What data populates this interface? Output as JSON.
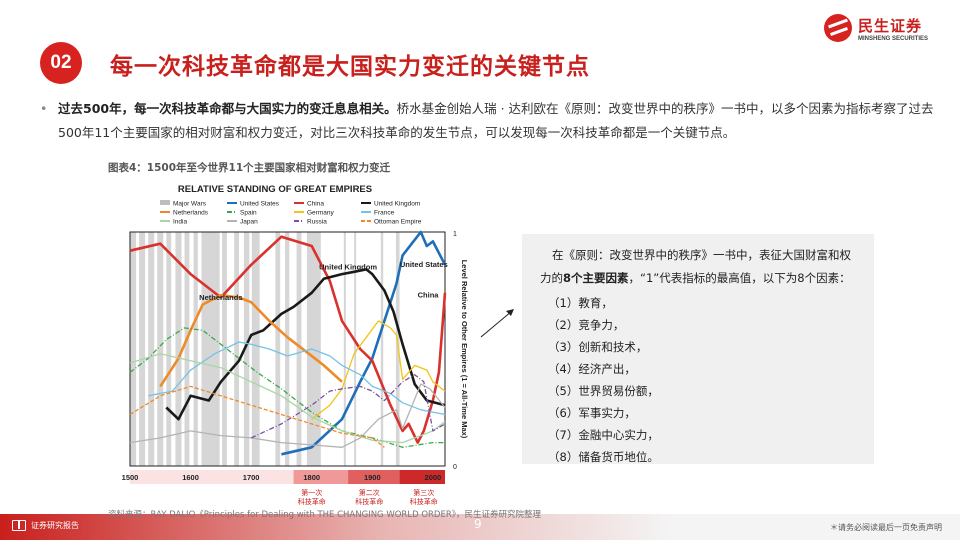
{
  "header": {
    "badge": "02",
    "title": "每一次科技革命都是大国实力变迁的关键节点",
    "brand_cn": "民生证券",
    "brand_en": "MINSHENG SECURITIES"
  },
  "intro": {
    "bullet": "•",
    "bold": "过去500年，每一次科技革命都与大国实力的变迁息息相关。",
    "rest": "桥水基金创始人瑞 · 达利欧在《原则：改变世界中的秩序》一书中，以多个因素为指标考察了过去500年11个主要国家的相对财富和权力变迁，对比三次科技革命的发生节点，可以发现每一次科技革命都是一个关键节点。"
  },
  "figure": {
    "caption": "图表4：1500年至今世界11个主要国家相对财富和权力变迁",
    "source": "资料来源：RAY DALIO《Principles for Dealing with THE CHANGING WORLD ORDER》，民生证券研究院整理"
  },
  "chart_data": {
    "type": "line",
    "title": "RELATIVE STANDING OF GREAT EMPIRES",
    "xlabel": "",
    "ylabel": "Level Relative to Other Empires (1 = All-Time Max)",
    "xlim": [
      1500,
      2020
    ],
    "ylim": [
      0,
      1
    ],
    "y_ticks": [
      "1",
      "0"
    ],
    "x_ticks": [
      "1500",
      "1600",
      "1700",
      "1800",
      "1900",
      "2000"
    ],
    "legend": [
      {
        "name": "Major Wars",
        "color": "#bdbdbd",
        "style": "band"
      },
      {
        "name": "United States",
        "color": "#1f6fb8",
        "style": "solid"
      },
      {
        "name": "China",
        "color": "#d9312b",
        "style": "solid"
      },
      {
        "name": "United Kingdom",
        "color": "#1a1a1a",
        "style": "solid"
      },
      {
        "name": "Netherlands",
        "color": "#ef8a2a",
        "style": "solid"
      },
      {
        "name": "Spain",
        "color": "#3aa84a",
        "style": "dashdot"
      },
      {
        "name": "Germany",
        "color": "#f2c419",
        "style": "solid"
      },
      {
        "name": "France",
        "color": "#76c2e6",
        "style": "solid"
      },
      {
        "name": "India",
        "color": "#a9d6a4",
        "style": "solid"
      },
      {
        "name": "Japan",
        "color": "#b3b3b3",
        "style": "solid"
      },
      {
        "name": "Russia",
        "color": "#7d4ea6",
        "style": "dashdot"
      },
      {
        "name": "Ottoman Empire",
        "color": "#ef8a2a",
        "style": "dashed"
      }
    ],
    "annotations": [
      {
        "text": "United Kingdom",
        "x": 1860,
        "y": 0.84
      },
      {
        "text": "United States",
        "x": 1985,
        "y": 0.85
      },
      {
        "text": "China",
        "x": 1992,
        "y": 0.72
      },
      {
        "text": "Netherlands",
        "x": 1650,
        "y": 0.71
      }
    ],
    "war_bands": [
      [
        1500,
        1510
      ],
      [
        1515,
        1525
      ],
      [
        1530,
        1540
      ],
      [
        1545,
        1555
      ],
      [
        1560,
        1568
      ],
      [
        1575,
        1585
      ],
      [
        1590,
        1598
      ],
      [
        1605,
        1612
      ],
      [
        1618,
        1648
      ],
      [
        1652,
        1660
      ],
      [
        1672,
        1680
      ],
      [
        1688,
        1697
      ],
      [
        1701,
        1714
      ],
      [
        1740,
        1748
      ],
      [
        1756,
        1763
      ],
      [
        1775,
        1783
      ],
      [
        1792,
        1815
      ],
      [
        1853,
        1856
      ],
      [
        1870,
        1871
      ],
      [
        1914,
        1918
      ],
      [
        1939,
        1945
      ]
    ],
    "era_bar": [
      {
        "label": "1500",
        "from": 1500,
        "to": 1800,
        "color": "#fbe3e4"
      },
      {
        "label": "1800",
        "from": 1770,
        "to": 1860,
        "color": "#ef9999"
      },
      {
        "label": "1900",
        "from": 1860,
        "to": 1945,
        "color": "#e06060"
      },
      {
        "label": "2000",
        "from": 1945,
        "to": 2020,
        "color": "#cc2a2a"
      }
    ],
    "revolutions": [
      {
        "label": "第一次科技革命",
        "x": 1800
      },
      {
        "label": "第二次科技革命",
        "x": 1895
      },
      {
        "label": "第三次科技革命",
        "x": 1985
      }
    ],
    "series": [
      {
        "name": "United States",
        "x": [
          1750,
          1800,
          1850,
          1880,
          1900,
          1920,
          1940,
          1950,
          1965,
          1980,
          1990,
          2000,
          2020
        ],
        "y": [
          0.05,
          0.08,
          0.2,
          0.36,
          0.46,
          0.62,
          0.78,
          0.9,
          0.95,
          1.0,
          0.94,
          0.96,
          0.86
        ]
      },
      {
        "name": "China",
        "x": [
          1500,
          1550,
          1600,
          1650,
          1700,
          1750,
          1800,
          1830,
          1850,
          1880,
          1900,
          1930,
          1950,
          1960,
          1975,
          1985,
          2000,
          2010,
          2020
        ],
        "y": [
          0.92,
          0.95,
          0.82,
          0.72,
          0.86,
          0.98,
          0.94,
          0.79,
          0.62,
          0.5,
          0.45,
          0.26,
          0.15,
          0.18,
          0.1,
          0.15,
          0.28,
          0.4,
          0.74
        ]
      },
      {
        "name": "United Kingdom",
        "x": [
          1560,
          1580,
          1600,
          1630,
          1650,
          1680,
          1700,
          1720,
          1750,
          1770,
          1800,
          1820,
          1850,
          1870,
          1890,
          1900,
          1920,
          1935,
          1950,
          1970,
          1990,
          2020
        ],
        "y": [
          0.25,
          0.2,
          0.3,
          0.28,
          0.36,
          0.45,
          0.56,
          0.58,
          0.65,
          0.68,
          0.74,
          0.8,
          0.82,
          0.83,
          0.84,
          0.82,
          0.75,
          0.66,
          0.52,
          0.35,
          0.28,
          0.26
        ]
      },
      {
        "name": "Netherlands",
        "x": [
          1550,
          1580,
          1600,
          1620,
          1650,
          1680,
          1700,
          1730,
          1760,
          1790,
          1820,
          1850
        ],
        "y": [
          0.34,
          0.46,
          0.58,
          0.69,
          0.73,
          0.72,
          0.7,
          0.62,
          0.55,
          0.49,
          0.43,
          0.36
        ]
      },
      {
        "name": "Spain",
        "x": [
          1500,
          1530,
          1560,
          1590,
          1620,
          1650,
          1680,
          1710,
          1750,
          1800,
          1850,
          1900,
          1950,
          2000,
          2020
        ],
        "y": [
          0.4,
          0.46,
          0.54,
          0.59,
          0.58,
          0.52,
          0.46,
          0.4,
          0.33,
          0.23,
          0.15,
          0.12,
          0.08,
          0.1,
          0.1
        ]
      },
      {
        "name": "Germany",
        "x": [
          1800,
          1830,
          1850,
          1870,
          1890,
          1910,
          1930,
          1940,
          1950,
          1970,
          1990,
          2000,
          2020
        ],
        "y": [
          0.2,
          0.26,
          0.33,
          0.48,
          0.55,
          0.62,
          0.59,
          0.56,
          0.37,
          0.43,
          0.41,
          0.36,
          0.32
        ]
      },
      {
        "name": "France",
        "x": [
          1530,
          1570,
          1600,
          1640,
          1680,
          1700,
          1730,
          1760,
          1800,
          1830,
          1850,
          1880,
          1900,
          1930,
          1950,
          1980,
          2020
        ],
        "y": [
          0.3,
          0.32,
          0.41,
          0.48,
          0.53,
          0.52,
          0.5,
          0.47,
          0.5,
          0.47,
          0.43,
          0.39,
          0.34,
          0.31,
          0.27,
          0.24,
          0.22
        ]
      },
      {
        "name": "India",
        "x": [
          1500,
          1550,
          1600,
          1650,
          1700,
          1750,
          1800,
          1850,
          1900,
          1950,
          2000,
          2020
        ],
        "y": [
          0.44,
          0.48,
          0.45,
          0.42,
          0.36,
          0.3,
          0.21,
          0.15,
          0.11,
          0.1,
          0.15,
          0.19
        ]
      },
      {
        "name": "Japan",
        "x": [
          1500,
          1550,
          1600,
          1650,
          1700,
          1750,
          1800,
          1850,
          1880,
          1910,
          1940,
          1950,
          1980,
          1995,
          2020
        ],
        "y": [
          0.1,
          0.12,
          0.15,
          0.13,
          0.12,
          0.1,
          0.09,
          0.08,
          0.12,
          0.2,
          0.24,
          0.16,
          0.35,
          0.33,
          0.25
        ]
      },
      {
        "name": "Russia",
        "x": [
          1700,
          1750,
          1800,
          1830,
          1850,
          1880,
          1900,
          1920,
          1950,
          1970,
          1985,
          2000,
          2020
        ],
        "y": [
          0.12,
          0.18,
          0.26,
          0.32,
          0.33,
          0.34,
          0.32,
          0.28,
          0.36,
          0.39,
          0.36,
          0.15,
          0.18
        ]
      },
      {
        "name": "Ottoman Empire",
        "x": [
          1500,
          1550,
          1600,
          1650,
          1700,
          1750,
          1800,
          1850,
          1900,
          1920
        ],
        "y": [
          0.22,
          0.3,
          0.34,
          0.3,
          0.26,
          0.22,
          0.18,
          0.14,
          0.12,
          0.08
        ]
      }
    ]
  },
  "info": {
    "intro_a": "在《原则：改变世界中的秩序》一书中，表征大国财富和权力的",
    "intro_bold": "8个主要因素",
    "intro_b": "，“1”代表指标的最高值，以下为8个因素：",
    "factors": [
      "（1）教育，",
      "（2）竞争力，",
      "（3）创新和技术，",
      "（4）经济产出，",
      "（5）世界贸易份额，",
      "（6）军事实力，",
      "（7）金融中心实力，",
      "（8）储备货币地位。"
    ]
  },
  "footer": {
    "left_label": "证券研究报告",
    "page": "9",
    "disclaimer": "＊请务必阅读最后一页免责声明"
  }
}
